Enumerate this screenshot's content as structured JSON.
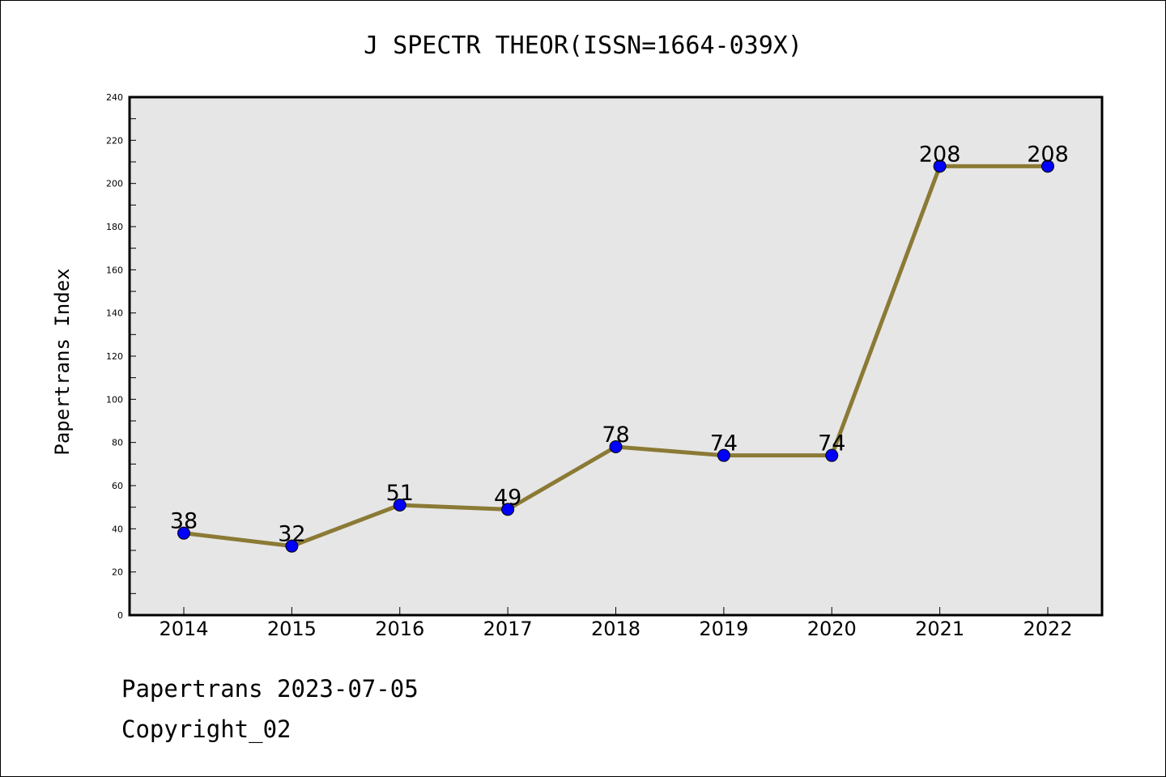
{
  "chart_data": {
    "type": "line",
    "title": "J SPECTR THEOR(ISSN=1664-039X)",
    "ylabel": "Papertrans Index",
    "xlabel": "",
    "categories": [
      "2014",
      "2015",
      "2016",
      "2017",
      "2018",
      "2019",
      "2020",
      "2021",
      "2022"
    ],
    "series": [
      {
        "values": [
          38,
          32,
          51,
          49,
          78,
          74,
          74,
          208,
          208
        ]
      }
    ],
    "ylim": [
      0,
      240
    ],
    "yticks": [
      "0",
      "20",
      "40",
      "60",
      "80",
      "100",
      "120",
      "140",
      "160",
      "180",
      "200",
      "220",
      "240"
    ],
    "data_labels": [
      "38",
      "32",
      "51",
      "49",
      "78",
      "74",
      "74",
      "208",
      "208"
    ],
    "grid": false,
    "colors": {
      "line": "#8b7a35",
      "marker": "#0000ff",
      "plot_bg": "#e6e6e6"
    }
  },
  "footer": {
    "line1": "Papertrans 2023-07-05",
    "line2": "Copyright_02"
  }
}
